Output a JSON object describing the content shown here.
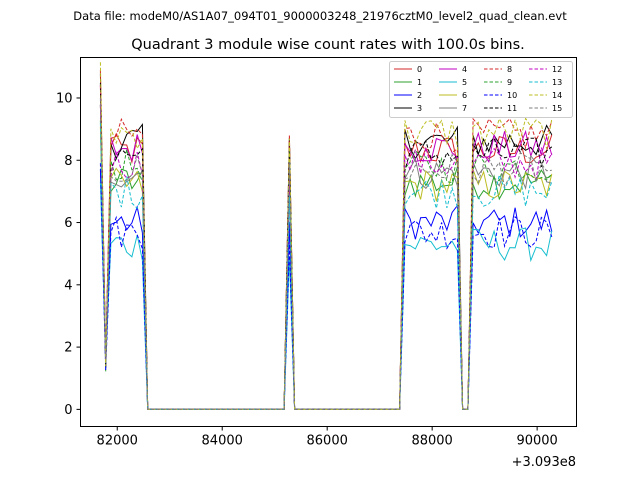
{
  "chart_data": {
    "type": "line",
    "subtitle": "Data file: modeM0/AS1A07_094T01_9000003248_21976cztM0_level2_quad_clean.evt",
    "title": "Quadrant 3 module wise count rates with 100.0s bins.",
    "xlabel": "",
    "ylabel": "",
    "x_offset_label": "+3.093e8",
    "xlim": [
      81300,
      90750
    ],
    "ylim": [
      -0.55,
      11.3
    ],
    "x_ticks": [
      82000,
      84000,
      86000,
      88000,
      90000
    ],
    "x_tick_labels": [
      "82000",
      "84000",
      "86000",
      "88000",
      "90000"
    ],
    "y_ticks": [
      0,
      2,
      4,
      6,
      8,
      10
    ],
    "y_tick_labels": [
      "0",
      "2",
      "4",
      "6",
      "8",
      "10"
    ],
    "legend_position": "top-right",
    "segments": [
      {
        "start": 81680,
        "end": 82480
      },
      {
        "start": 82480,
        "end": 85280
      },
      {
        "start": 85280,
        "end": 87480
      },
      {
        "start": 87480,
        "end": 88480
      },
      {
        "start": 88480,
        "end": 88780
      },
      {
        "start": 88780,
        "end": 90320
      }
    ],
    "series": [
      {
        "name": "0",
        "color": "#d62728",
        "dash": "solid",
        "level": 8.3
      },
      {
        "name": "1",
        "color": "#2ca02c",
        "dash": "solid",
        "level": 7.3
      },
      {
        "name": "2",
        "color": "#0000ff",
        "dash": "solid",
        "level": 6.0
      },
      {
        "name": "3",
        "color": "#000000",
        "dash": "solid",
        "level": 8.6
      },
      {
        "name": "4",
        "color": "#c000c0",
        "dash": "solid",
        "level": 8.4
      },
      {
        "name": "5",
        "color": "#17becf",
        "dash": "solid",
        "level": 5.3
      },
      {
        "name": "6",
        "color": "#bcbd22",
        "dash": "solid",
        "level": 7.2
      },
      {
        "name": "7",
        "color": "#7f7f7f",
        "dash": "solid",
        "level": 7.6
      },
      {
        "name": "8",
        "color": "#d62728",
        "dash": "dashed",
        "level": 8.8
      },
      {
        "name": "9",
        "color": "#2ca02c",
        "dash": "dashed",
        "level": 7.8
      },
      {
        "name": "10",
        "color": "#0000ff",
        "dash": "dashed",
        "level": 5.7
      },
      {
        "name": "11",
        "color": "#000000",
        "dash": "dashed",
        "level": 8.2
      },
      {
        "name": "12",
        "color": "#c000c0",
        "dash": "dashed",
        "level": 7.9
      },
      {
        "name": "13",
        "color": "#17becf",
        "dash": "dashed",
        "level": 7.0
      },
      {
        "name": "14",
        "color": "#bcbd22",
        "dash": "dashed",
        "level": 8.9
      },
      {
        "name": "15",
        "color": "#7f7f7f",
        "dash": "dashed",
        "level": 7.7
      }
    ]
  }
}
